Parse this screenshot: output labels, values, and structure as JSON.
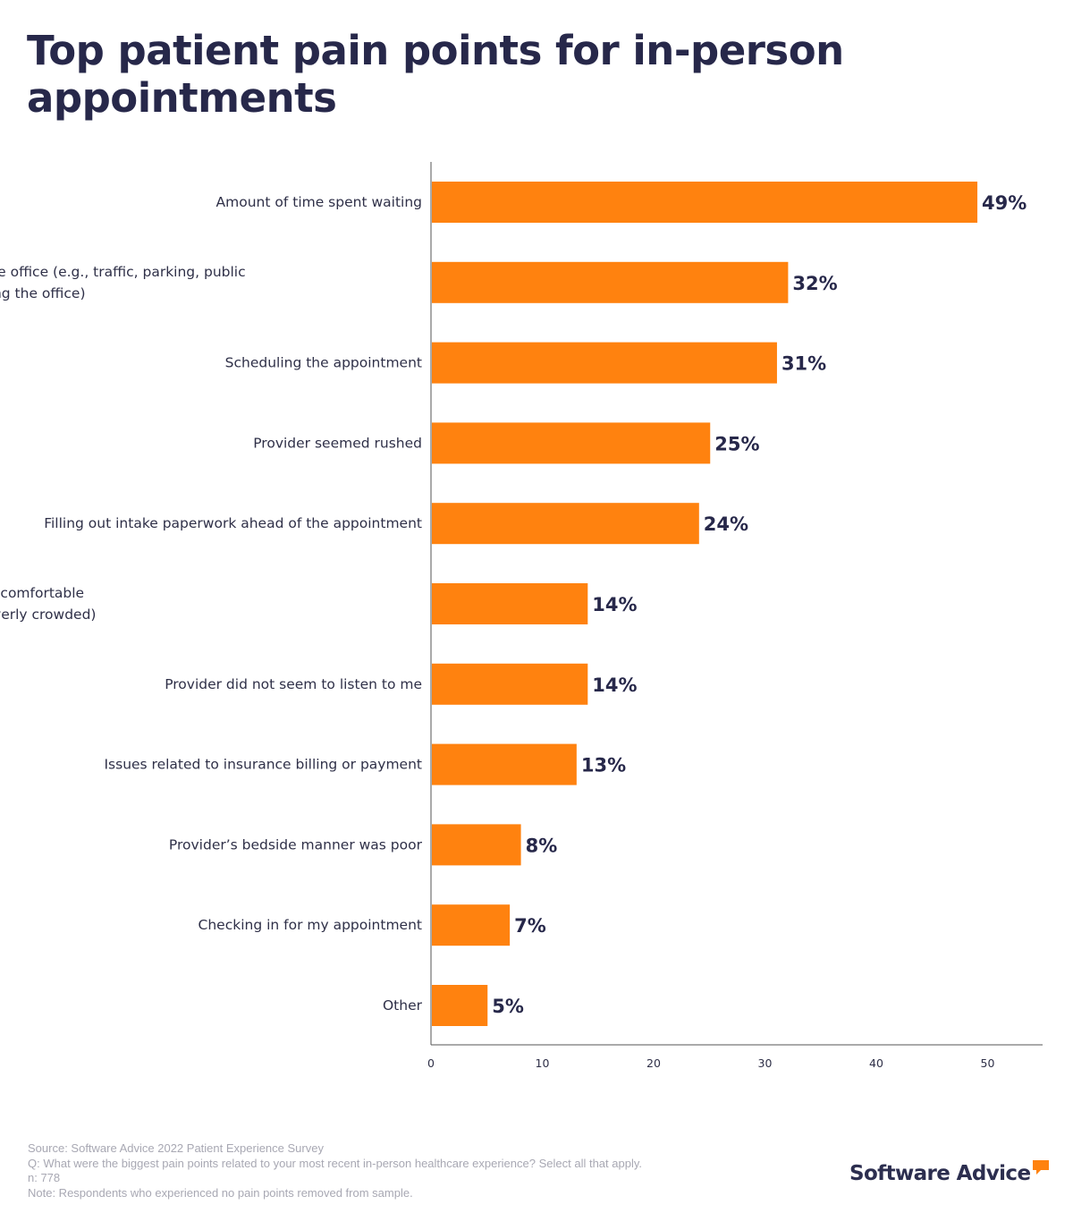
{
  "title": "Top patient pain points for in-person appointments",
  "chart_data": {
    "type": "bar",
    "orientation": "horizontal",
    "title": "Top patient pain points for in-person appointments",
    "xlabel": "",
    "ylabel": "",
    "xlim": [
      0,
      55
    ],
    "x_ticks": [
      0,
      10,
      20,
      30,
      40,
      50
    ],
    "grid": false,
    "bar_color": "#ff820f",
    "categories": [
      [
        "Amount of time spent waiting"
      ],
      [
        "Getting to the office (e.g., traffic, parking, public",
        "transit, finding the office)"
      ],
      [
        "Scheduling the appointment"
      ],
      [
        "Provider seemed rushed"
      ],
      [
        "Filling out intake paperwork ahead of the appointment"
      ],
      [
        "Waiting room atmosphere (e.g., uncomfortable",
        "temperature, no entertainment, overly crowded)"
      ],
      [
        "Provider did not seem to listen to me"
      ],
      [
        "Issues related to insurance billing or payment"
      ],
      [
        "Provider’s bedside manner was poor"
      ],
      [
        "Checking in for my appointment"
      ],
      [
        "Other"
      ]
    ],
    "values": [
      49,
      32,
      31,
      25,
      24,
      14,
      14,
      13,
      8,
      7,
      5
    ],
    "value_labels": [
      "49%",
      "32%",
      "31%",
      "25%",
      "24%",
      "14%",
      "14%",
      "13%",
      "8%",
      "7%",
      "5%"
    ]
  },
  "footnotes": {
    "source": "Source: Software Advice 2022 Patient Experience Survey",
    "question": "Q: What were the biggest pain points related to your most recent in-person healthcare experience? Select all that apply.",
    "n": "n: 778",
    "note": "Note: Respondents who experienced no pain points removed from sample."
  },
  "logo": {
    "text": "Software Advice",
    "icon": "speech-bubble-icon",
    "text_color": "#2c2e4f",
    "accent_color": "#ff820f"
  },
  "colors": {
    "title": "#27284a",
    "axis": "#555555",
    "footnote": "#a8a8b3"
  }
}
